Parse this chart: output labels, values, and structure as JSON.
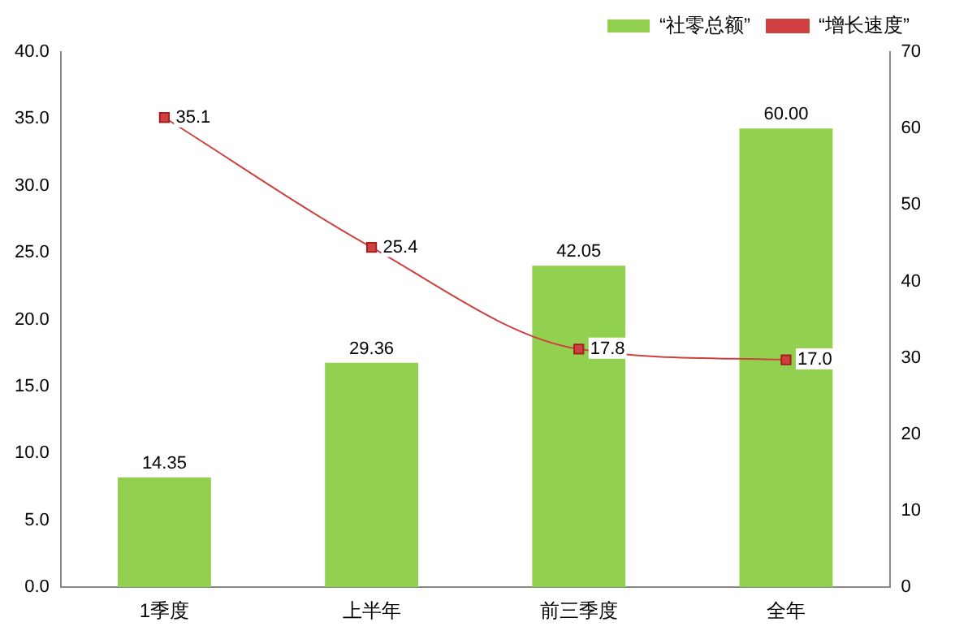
{
  "chart_data": {
    "type": "bar",
    "categories": [
      "1季度",
      "上半年",
      "前三季度",
      "全年"
    ],
    "series": [
      {
        "name": "“社零总额”",
        "axis": "y2",
        "color": "#92d050",
        "values": [
          14.35,
          29.36,
          42.05,
          60.0
        ],
        "value_labels": [
          "14.35",
          "29.36",
          "42.05",
          "60.00"
        ]
      },
      {
        "name": "“增长速度”",
        "type": "line",
        "axis": "y",
        "color": "#d04040",
        "marker": "square",
        "values": [
          35.1,
          25.4,
          17.8,
          17.0
        ],
        "value_labels": [
          "35.1",
          "25.4",
          "17.8",
          "17.0"
        ]
      }
    ],
    "ylim": [
      0,
      40
    ],
    "yticks": [
      {
        "value": 0,
        "label": "0.0"
      },
      {
        "value": 5,
        "label": "5.0"
      },
      {
        "value": 10,
        "label": "10.0"
      },
      {
        "value": 15,
        "label": "15.0"
      },
      {
        "value": 20,
        "label": "20.0"
      },
      {
        "value": 25,
        "label": "25.0"
      },
      {
        "value": 30,
        "label": "30.0"
      },
      {
        "value": 35,
        "label": "35.0"
      },
      {
        "value": 40,
        "label": "40.0"
      }
    ],
    "y2lim": [
      0,
      70
    ],
    "y2ticks": [
      0,
      10,
      20,
      30,
      40,
      50,
      60,
      70
    ],
    "grid": false,
    "legend": "top right"
  }
}
